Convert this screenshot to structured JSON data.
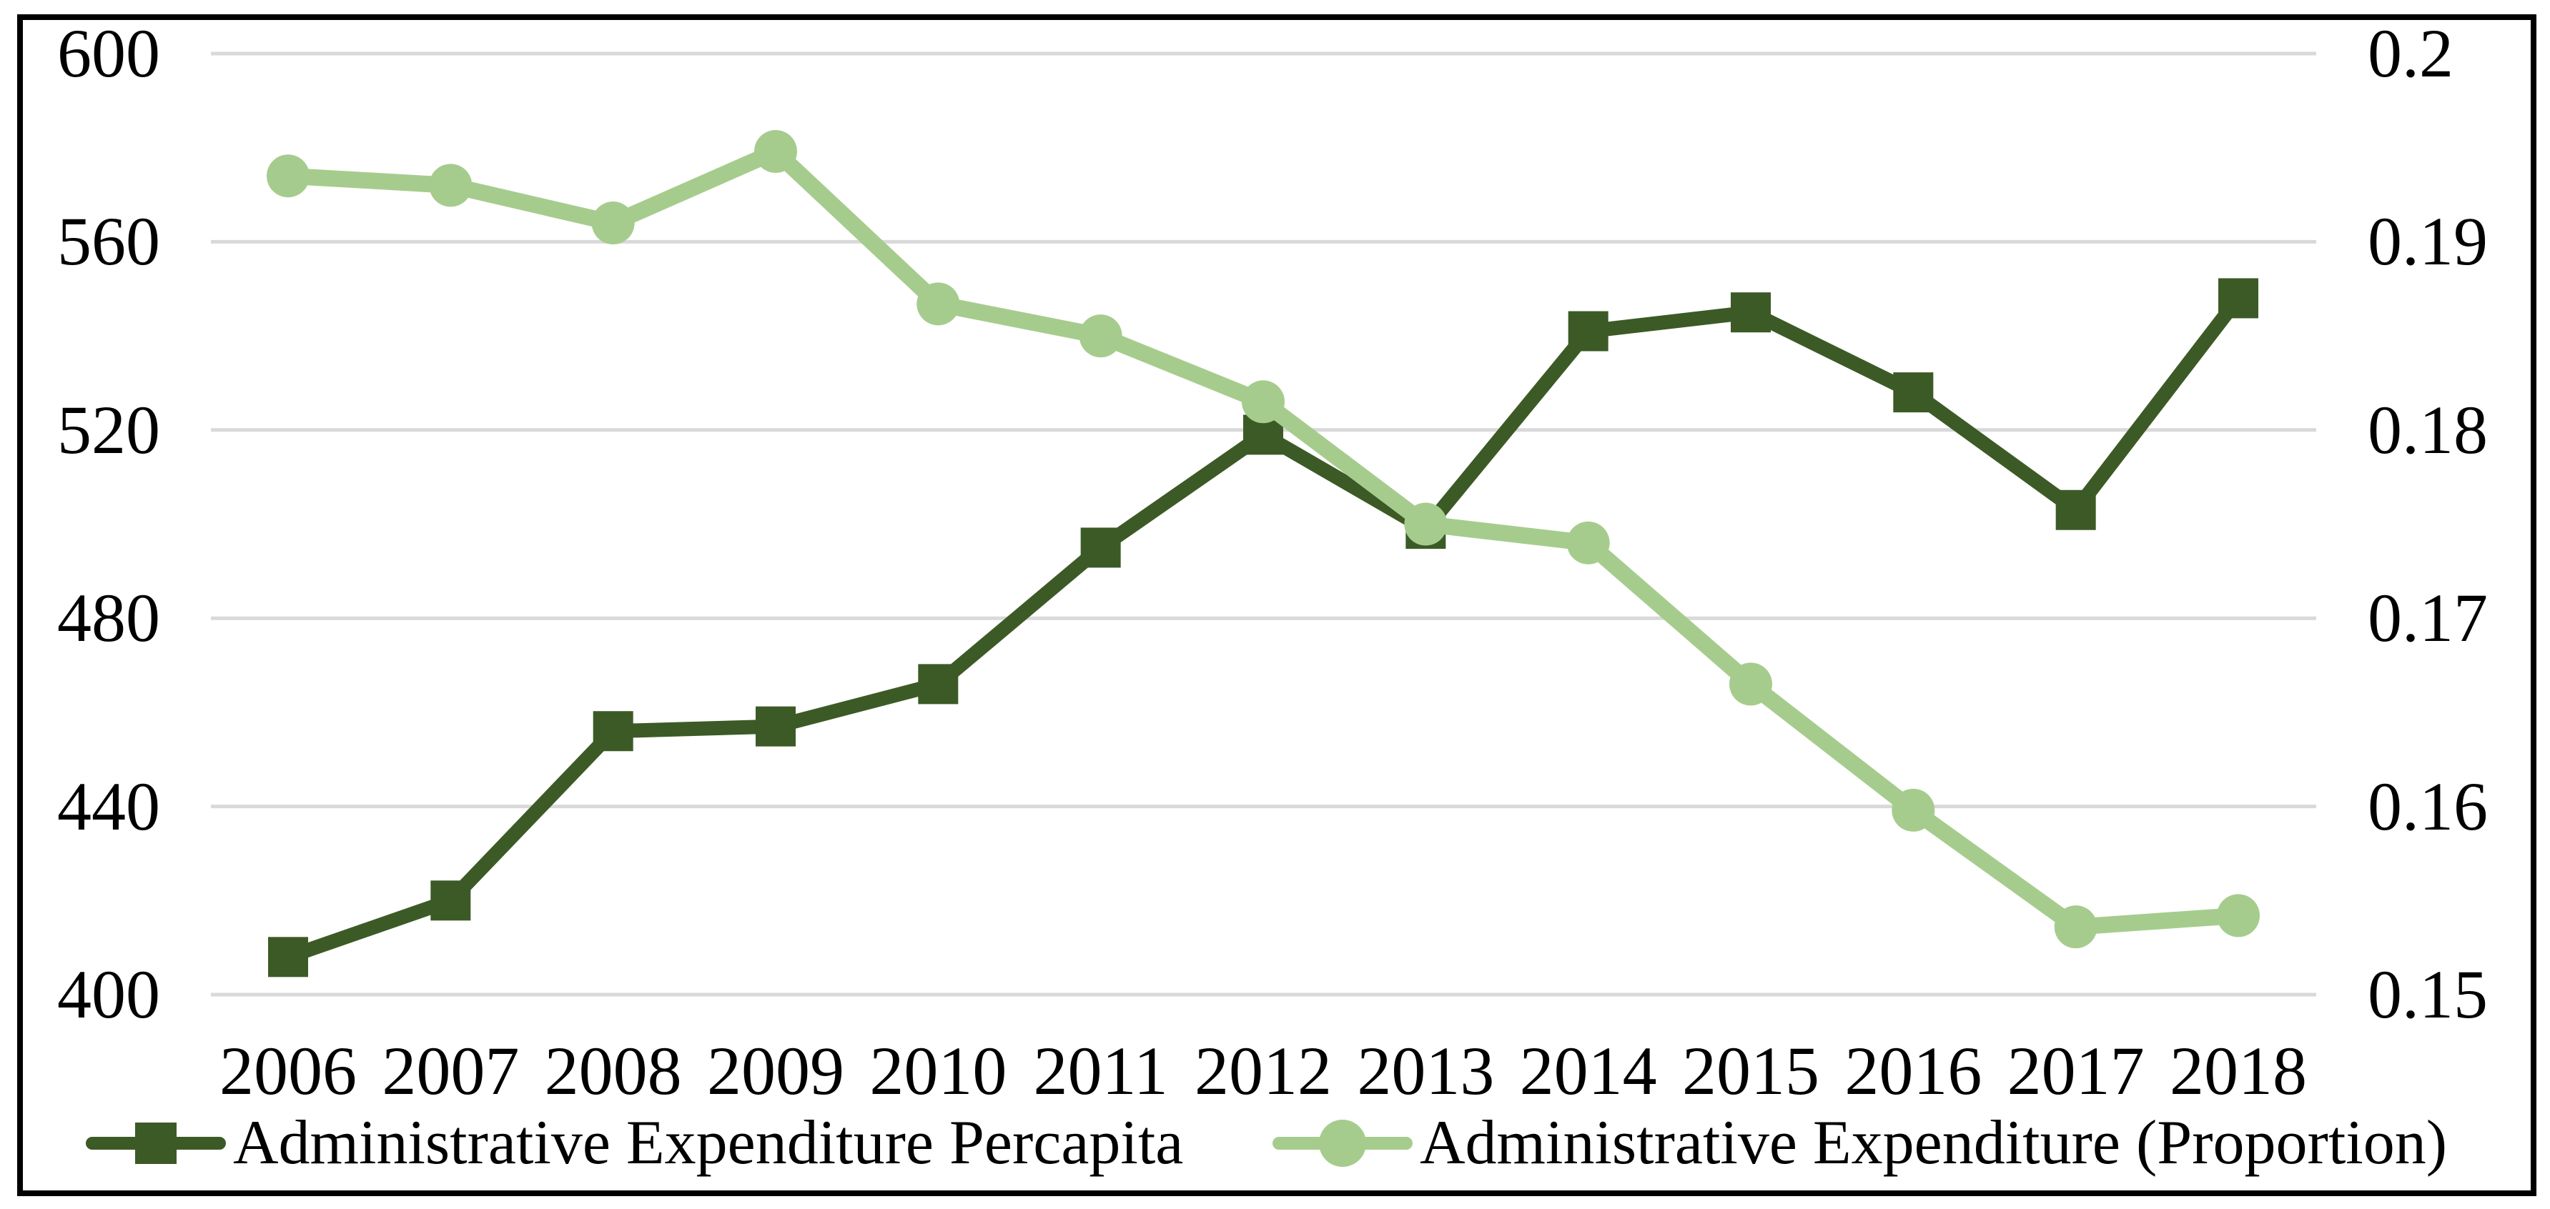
{
  "figure": {
    "background": "#ffffff",
    "border_color": "#000000"
  },
  "chart_data": {
    "type": "line",
    "title": "",
    "categories": [
      "2006",
      "2007",
      "2008",
      "2009",
      "2010",
      "2011",
      "2012",
      "2013",
      "2014",
      "2015",
      "2016",
      "2017",
      "2018"
    ],
    "series": [
      {
        "name": "Administrative Expenditure Percapita",
        "axis": "left",
        "marker": "square",
        "color": "#3c5a26",
        "values": [
          408,
          420,
          456,
          457,
          466,
          495,
          519,
          499,
          541,
          545,
          528,
          503,
          548
        ]
      },
      {
        "name": "Administrative Expenditure (Proportion)",
        "axis": "right",
        "marker": "circle",
        "color": "#a6cc8d",
        "values": [
          0.1935,
          0.193,
          0.191,
          0.1948,
          0.1867,
          0.185,
          0.1815,
          0.175,
          0.174,
          0.1665,
          0.1598,
          0.1536,
          0.1542
        ]
      }
    ],
    "left_axis": {
      "min": 400,
      "max": 600,
      "tick_labels": [
        "600",
        "560",
        "520",
        "480",
        "440",
        "400"
      ]
    },
    "right_axis": {
      "min": 0.15,
      "max": 0.2,
      "tick_labels": [
        "0.2",
        "0.19",
        "0.18",
        "0.17",
        "0.16",
        "0.15"
      ]
    },
    "grid": true,
    "legend_position": "bottom",
    "colors": {
      "percapita": "#3c5a26",
      "proportion": "#a6cc8d",
      "gridline": "#d9d9d9",
      "text": "#000000"
    }
  }
}
